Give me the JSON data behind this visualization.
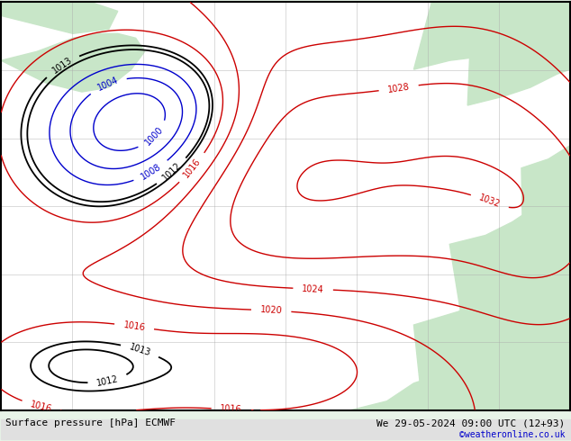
{
  "title_left": "Surface pressure [hPa] ECMWF",
  "title_right": "We 29-05-2024 09:00 UTC (12+93)",
  "copyright": "©weatheronline.co.uk",
  "bg_color": "#e8f4e8",
  "ocean_color": "#ffffff",
  "land_color": "#c8e6c8",
  "grid_color": "#aaaaaa",
  "border_color": "#000000",
  "label_fontsize": 7,
  "title_fontsize": 8,
  "copyright_fontsize": 7,
  "copyright_color": "#0000cc",
  "figsize": [
    6.34,
    4.9
  ],
  "dpi": 100,
  "black_levels": [
    1012,
    1013
  ],
  "red_levels": [
    1016,
    1020,
    1024,
    1028,
    1032
  ],
  "blue_levels": [
    1000,
    1004,
    1008
  ],
  "black_color": "#000000",
  "red_color": "#cc0000",
  "blue_color": "#0000cc"
}
